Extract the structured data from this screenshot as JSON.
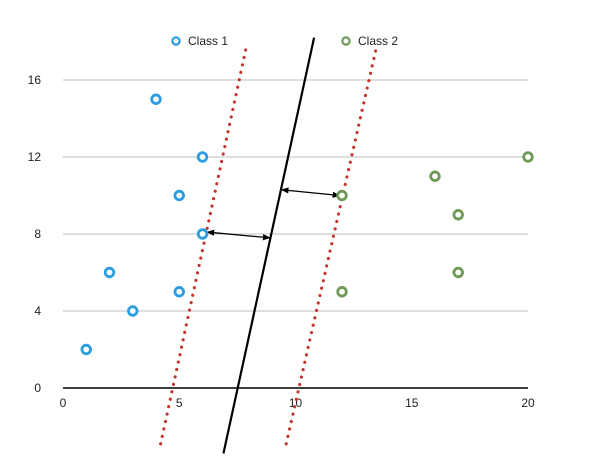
{
  "chart_data": {
    "type": "scatter",
    "title": "",
    "xlabel": "",
    "ylabel": "",
    "xlim": [
      0,
      20
    ],
    "ylim": [
      0,
      16
    ],
    "x_ticks": [
      "0",
      "5",
      "10",
      "15",
      "20"
    ],
    "y_ticks": [
      "0",
      "4",
      "8",
      "12",
      "16"
    ],
    "grid": "horizontal",
    "legend_position": "top",
    "series": [
      {
        "name": "Class 1",
        "color": "#2b9de0",
        "marker": "hollow-circle",
        "points": [
          [
            1,
            2
          ],
          [
            2,
            6
          ],
          [
            3,
            4
          ],
          [
            4,
            15
          ],
          [
            5,
            10
          ],
          [
            5,
            5
          ],
          [
            6,
            12
          ],
          [
            6,
            8
          ]
        ]
      },
      {
        "name": "Class 2",
        "color": "#6e9a55",
        "marker": "hollow-circle",
        "points": [
          [
            12,
            10
          ],
          [
            12,
            5
          ],
          [
            16,
            11
          ],
          [
            17,
            9
          ],
          [
            17,
            6
          ],
          [
            20,
            12
          ]
        ]
      }
    ],
    "boundary": {
      "style": "solid",
      "color": "#000000",
      "points": [
        [
          6.9,
          -3.4
        ],
        [
          10.8,
          18.2
        ]
      ]
    },
    "margins": [
      {
        "style": "dotted",
        "color": "#c4362d",
        "points": [
          [
            4.2,
            -2.9
          ],
          [
            7.9,
            17.8
          ]
        ]
      },
      {
        "style": "dotted",
        "color": "#c4362d",
        "points": [
          [
            9.6,
            -2.9
          ],
          [
            13.5,
            17.8
          ]
        ]
      }
    ],
    "arrows": [
      {
        "from": [
          6.2,
          8.1
        ],
        "to": [
          8.9,
          7.8
        ]
      },
      {
        "from": [
          9.4,
          10.3
        ],
        "to": [
          11.9,
          10.0
        ]
      }
    ]
  }
}
